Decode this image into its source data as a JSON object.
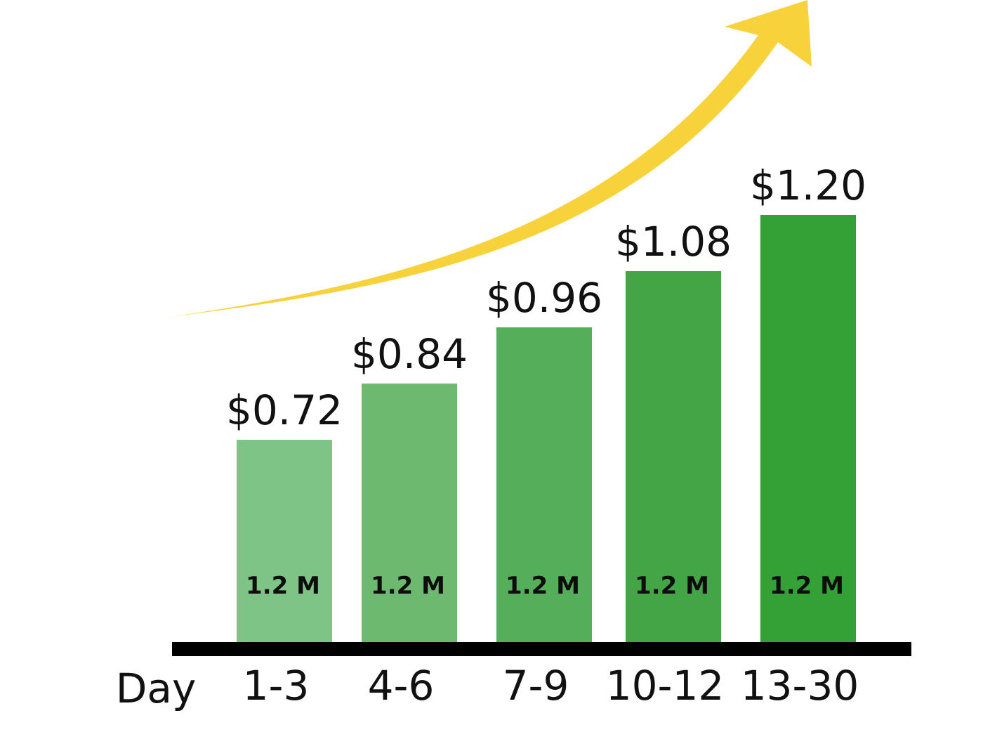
{
  "chart_data": {
    "type": "bar",
    "xlabel": "Day",
    "ylabel": "",
    "categories": [
      "1-3",
      "4-6",
      "7-9",
      "10-12",
      "13-30"
    ],
    "values": [
      0.72,
      0.84,
      0.96,
      1.08,
      1.2
    ],
    "value_labels": [
      "$0.72",
      "$0.84",
      "$0.96",
      "$1.08",
      "$1.20"
    ],
    "inner_labels": [
      "1.2 M",
      "1.2 M",
      "1.2 M",
      "1.2 M",
      "1.2 M"
    ],
    "bar_colors": [
      "#7fc487",
      "#6cb96f",
      "#55ae59",
      "#44a547",
      "#33a136"
    ],
    "axis_color": "#000000",
    "arrow_color": "#f7d23a",
    "ylim": [
      0,
      1.5
    ],
    "grid": false,
    "legend": "none",
    "annotations": [
      "rising-trend-arrow"
    ]
  }
}
